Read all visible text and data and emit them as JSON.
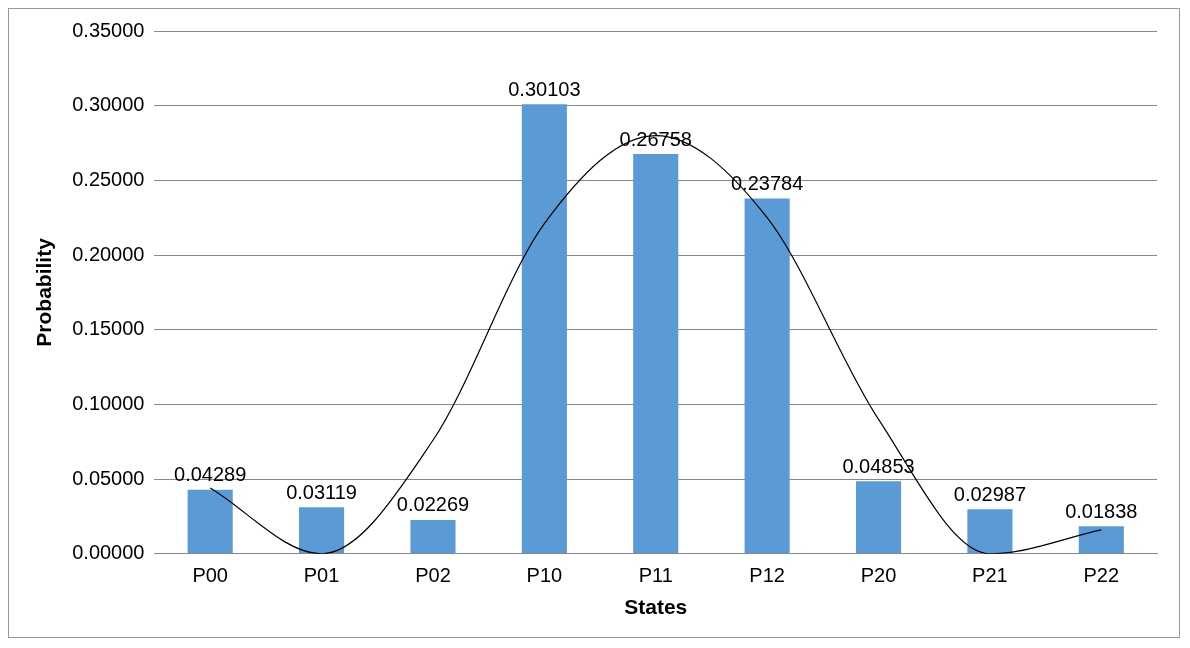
{
  "chart_data": {
    "type": "bar",
    "xlabel": "States",
    "ylabel": "Probability",
    "categories": [
      "P00",
      "P01",
      "P02",
      "P10",
      "P11",
      "P12",
      "P20",
      "P21",
      "P22"
    ],
    "series": [
      {
        "color": "#5b9bd5",
        "values": [
          0.04289,
          0.03119,
          0.02269,
          0.30103,
          0.26758,
          0.23784,
          0.04853,
          0.02987,
          0.01838
        ],
        "value_labels": [
          "0.04289",
          "0.03119",
          "0.02269",
          "0.30103",
          "0.26758",
          "0.23784",
          "0.04853",
          "0.02987",
          "0.01838"
        ]
      },
      {
        "type": "line",
        "color": "#000000",
        "values": [
          0.044,
          0,
          0.076,
          0.221,
          0.28,
          0.225,
          0.09,
          0,
          0.016
        ]
      }
    ],
    "ylim": [
      0,
      0.35
    ],
    "yticks": [
      {
        "value": 0,
        "label": "0.00000"
      },
      {
        "value": 0.05,
        "label": "0.05000"
      },
      {
        "value": 0.1,
        "label": "0.10000"
      },
      {
        "value": 0.15,
        "label": "0.15000"
      },
      {
        "value": 0.2,
        "label": "0.20000"
      },
      {
        "value": 0.25,
        "label": "0.25000"
      },
      {
        "value": 0.3,
        "label": "0.30000"
      },
      {
        "value": 0.35,
        "label": "0.35000"
      }
    ],
    "grid": "y",
    "legend": false,
    "marker": "none",
    "line_style": "solid"
  }
}
